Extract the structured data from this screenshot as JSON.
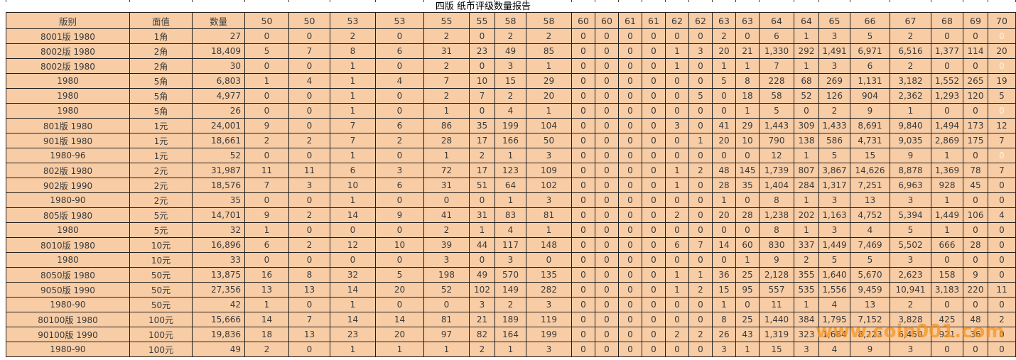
{
  "title": "四版 纸币评级数量报告",
  "watermark": "www.coin001.com",
  "colors": {
    "cell_background": "#f8cda6",
    "grid_line": "#1f1f1f",
    "text": "#3a3a3a",
    "faint_text": "#fdf3e3",
    "watermark_orange": "#f7941d"
  },
  "table": {
    "headers": [
      "版别",
      "面值",
      "数量",
      "50",
      "50",
      "53",
      "53",
      "55",
      "55",
      "58",
      "58",
      "60",
      "60",
      "61",
      "61",
      "62",
      "62",
      "63",
      "63",
      "64",
      "64",
      "65",
      "66",
      "67",
      "68",
      "69",
      "70"
    ],
    "light_cells": [
      [
        0,
        23
      ],
      [
        2,
        23
      ],
      [
        5,
        23
      ],
      [
        8,
        23
      ]
    ],
    "rows": [
      {
        "ban": "8001版 1980",
        "mianzhi": "1角",
        "shuliang": "27",
        "grades": [
          "0",
          "0",
          "2",
          "0",
          "2",
          "0",
          "2",
          "2",
          "0",
          "0",
          "0",
          "0",
          "0",
          "0",
          "2",
          "0",
          "6",
          "1",
          "3",
          "5",
          "2",
          "0",
          "0",
          "0"
        ]
      },
      {
        "ban": "8002版 1980",
        "mianzhi": "2角",
        "shuliang": "18,409",
        "grades": [
          "5",
          "7",
          "8",
          "6",
          "31",
          "23",
          "49",
          "85",
          "0",
          "0",
          "0",
          "0",
          "1",
          "3",
          "20",
          "21",
          "1,330",
          "292",
          "1,491",
          "6,971",
          "6,516",
          "1,377",
          "114",
          "20"
        ]
      },
      {
        "ban": "8002版 1980",
        "mianzhi": "2角",
        "shuliang": "30",
        "grades": [
          "0",
          "0",
          "1",
          "0",
          "2",
          "0",
          "3",
          "1",
          "0",
          "0",
          "0",
          "0",
          "1",
          "0",
          "1",
          "1",
          "7",
          "1",
          "3",
          "6",
          "2",
          "0",
          "0",
          "0"
        ]
      },
      {
        "ban": "1980",
        "mianzhi": "5角",
        "shuliang": "6,803",
        "grades": [
          "1",
          "4",
          "1",
          "4",
          "7",
          "10",
          "15",
          "29",
          "0",
          "0",
          "0",
          "0",
          "0",
          "0",
          "5",
          "8",
          "228",
          "68",
          "269",
          "1,131",
          "3,182",
          "1,552",
          "265",
          "19"
        ]
      },
      {
        "ban": "1980",
        "mianzhi": "5角",
        "shuliang": "4,977",
        "grades": [
          "0",
          "0",
          "1",
          "0",
          "2",
          "7",
          "2",
          "20",
          "0",
          "0",
          "0",
          "0",
          "0",
          "5",
          "0",
          "18",
          "58",
          "52",
          "126",
          "904",
          "2,362",
          "1,293",
          "120",
          "5"
        ]
      },
      {
        "ban": "1980",
        "mianzhi": "5角",
        "shuliang": "26",
        "grades": [
          "0",
          "0",
          "1",
          "0",
          "1",
          "0",
          "4",
          "1",
          "0",
          "0",
          "0",
          "0",
          "0",
          "0",
          "0",
          "1",
          "5",
          "0",
          "2",
          "9",
          "1",
          "0",
          "0",
          "0"
        ]
      },
      {
        "ban": "801版 1980",
        "mianzhi": "1元",
        "shuliang": "24,001",
        "grades": [
          "9",
          "0",
          "7",
          "6",
          "86",
          "35",
          "199",
          "104",
          "0",
          "0",
          "0",
          "0",
          "3",
          "0",
          "41",
          "29",
          "1,443",
          "309",
          "1,433",
          "8,691",
          "9,840",
          "1,494",
          "173",
          "12"
        ]
      },
      {
        "ban": "901版 1980",
        "mianzhi": "1元",
        "shuliang": "18,661",
        "grades": [
          "2",
          "2",
          "7",
          "2",
          "28",
          "17",
          "166",
          "50",
          "0",
          "0",
          "0",
          "0",
          "0",
          "1",
          "20",
          "10",
          "790",
          "138",
          "586",
          "4,731",
          "9,035",
          "2,869",
          "175",
          "7"
        ]
      },
      {
        "ban": "1980-96",
        "mianzhi": "1元",
        "shuliang": "52",
        "grades": [
          "0",
          "0",
          "1",
          "0",
          "1",
          "2",
          "1",
          "3",
          "0",
          "0",
          "0",
          "0",
          "0",
          "0",
          "0",
          "0",
          "12",
          "1",
          "5",
          "15",
          "9",
          "1",
          "0",
          "0"
        ]
      },
      {
        "ban": "802版 1980",
        "mianzhi": "2元",
        "shuliang": "31,987",
        "grades": [
          "11",
          "11",
          "6",
          "3",
          "72",
          "17",
          "123",
          "109",
          "0",
          "0",
          "0",
          "0",
          "1",
          "2",
          "48",
          "145",
          "1,739",
          "807",
          "3,867",
          "14,626",
          "8,878",
          "1,369",
          "78",
          "7"
        ]
      },
      {
        "ban": "902版 1990",
        "mianzhi": "2元",
        "shuliang": "18,576",
        "grades": [
          "7",
          "3",
          "10",
          "6",
          "31",
          "51",
          "64",
          "102",
          "0",
          "0",
          "0",
          "0",
          "1",
          "0",
          "28",
          "35",
          "1,404",
          "284",
          "1,317",
          "7,251",
          "6,963",
          "928",
          "45",
          "0"
        ]
      },
      {
        "ban": "1980-90",
        "mianzhi": "2元",
        "shuliang": "35",
        "grades": [
          "0",
          "0",
          "1",
          "0",
          "0",
          "0",
          "1",
          "3",
          "0",
          "0",
          "0",
          "0",
          "0",
          "0",
          "1",
          "0",
          "8",
          "1",
          "3",
          "13",
          "3",
          "1",
          "0",
          "0"
        ]
      },
      {
        "ban": "805版 1980",
        "mianzhi": "5元",
        "shuliang": "14,701",
        "grades": [
          "9",
          "2",
          "14",
          "9",
          "41",
          "31",
          "83",
          "81",
          "0",
          "0",
          "0",
          "0",
          "2",
          "0",
          "20",
          "28",
          "1,238",
          "202",
          "1,163",
          "4,752",
          "5,394",
          "1,449",
          "106",
          "4"
        ]
      },
      {
        "ban": "1980",
        "mianzhi": "5元",
        "shuliang": "32",
        "grades": [
          "1",
          "0",
          "0",
          "0",
          "2",
          "1",
          "4",
          "1",
          "0",
          "0",
          "0",
          "0",
          "0",
          "0",
          "0",
          "0",
          "8",
          "1",
          "3",
          "4",
          "5",
          "1",
          "0",
          "0"
        ]
      },
      {
        "ban": "8010版 1980",
        "mianzhi": "10元",
        "shuliang": "16,896",
        "grades": [
          "6",
          "2",
          "12",
          "10",
          "39",
          "44",
          "117",
          "148",
          "0",
          "0",
          "0",
          "0",
          "6",
          "7",
          "14",
          "60",
          "830",
          "337",
          "1,449",
          "7,469",
          "5,502",
          "666",
          "28",
          "0"
        ]
      },
      {
        "ban": "1980",
        "mianzhi": "10元",
        "shuliang": "33",
        "grades": [
          "0",
          "0",
          "0",
          "0",
          "3",
          "0",
          "3",
          "0",
          "0",
          "0",
          "0",
          "0",
          "0",
          "0",
          "0",
          "1",
          "9",
          "2",
          "5",
          "5",
          "3",
          "0",
          "0",
          "0"
        ]
      },
      {
        "ban": "8050版 1980",
        "mianzhi": "50元",
        "shuliang": "13,875",
        "grades": [
          "16",
          "8",
          "32",
          "5",
          "198",
          "49",
          "570",
          "135",
          "0",
          "0",
          "0",
          "0",
          "1",
          "1",
          "36",
          "25",
          "2,128",
          "355",
          "1,640",
          "5,670",
          "2,623",
          "158",
          "9",
          "0"
        ]
      },
      {
        "ban": "9050版 1990",
        "mianzhi": "50元",
        "shuliang": "27,356",
        "grades": [
          "13",
          "13",
          "14",
          "20",
          "52",
          "102",
          "149",
          "282",
          "0",
          "0",
          "0",
          "0",
          "1",
          "2",
          "15",
          "95",
          "557",
          "535",
          "1,556",
          "9,459",
          "10,941",
          "3,183",
          "220",
          "11"
        ]
      },
      {
        "ban": "1980-90",
        "mianzhi": "50元",
        "shuliang": "42",
        "grades": [
          "1",
          "0",
          "1",
          "0",
          "0",
          "3",
          "2",
          "3",
          "0",
          "0",
          "0",
          "0",
          "0",
          "0",
          "1",
          "0",
          "11",
          "1",
          "4",
          "13",
          "2",
          "0",
          "0",
          "0"
        ]
      },
      {
        "ban": "80100版 1980",
        "mianzhi": "100元",
        "shuliang": "15,666",
        "grades": [
          "14",
          "7",
          "14",
          "14",
          "81",
          "21",
          "189",
          "119",
          "0",
          "0",
          "0",
          "0",
          "0",
          "0",
          "8",
          "25",
          "1,440",
          "384",
          "1,795",
          "7,152",
          "3,828",
          "425",
          "48",
          "2"
        ]
      },
      {
        "ban": "90100版 1990",
        "mianzhi": "100元",
        "shuliang": "19,836",
        "grades": [
          "18",
          "13",
          "23",
          "20",
          "97",
          "82",
          "164",
          "199",
          "0",
          "0",
          "0",
          "0",
          "2",
          "2",
          "26",
          "43",
          "1,319",
          "323",
          "1,684",
          "8,223",
          "6,450",
          "921",
          "36",
          "0"
        ]
      },
      {
        "ban": "1980-90",
        "mianzhi": "100元",
        "shuliang": "49",
        "grades": [
          "2",
          "0",
          "1",
          "1",
          "1",
          "2",
          "1",
          "3",
          "0",
          "0",
          "0",
          "0",
          "0",
          "0",
          "3",
          "1",
          "15",
          "3",
          "4",
          "9",
          "3",
          "0",
          "0",
          "0"
        ]
      }
    ]
  }
}
